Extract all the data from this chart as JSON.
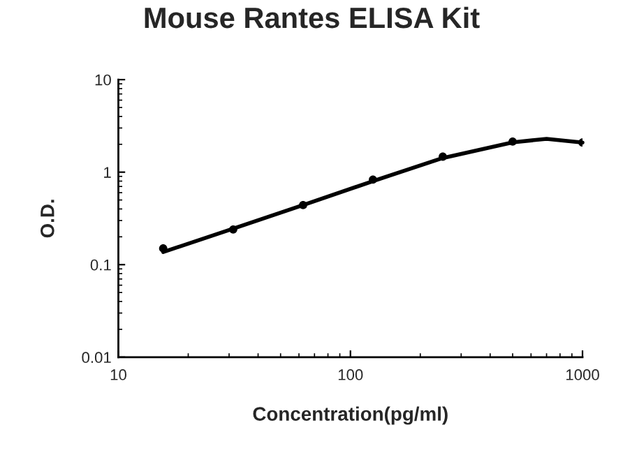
{
  "chart_data": {
    "type": "scatter",
    "title": "Mouse Rantes ELISA Kit",
    "xlabel": "Concentration(pg/ml)",
    "ylabel": "O.D.",
    "log": "xy",
    "xlim": [
      10,
      1000
    ],
    "ylim": [
      0.01,
      10
    ],
    "xticks": [
      10,
      100,
      1000
    ],
    "yticks": [
      0.01,
      0.1,
      1,
      10
    ],
    "grid": false,
    "series": [
      {
        "color": "#000000",
        "marker": "circle",
        "x": [
          15.6,
          31.25,
          62.5,
          125,
          250,
          500,
          1000
        ],
        "values": [
          0.15,
          0.24,
          0.44,
          0.83,
          1.47,
          2.14,
          2.09
        ]
      },
      {
        "type": "line",
        "color": "#000000",
        "marker": "none",
        "line_style": "solid",
        "x": [
          15.6,
          31.25,
          62.5,
          125,
          250,
          500,
          700,
          1000
        ],
        "values": [
          0.137,
          0.245,
          0.44,
          0.8,
          1.42,
          2.1,
          2.29,
          2.09
        ]
      }
    ]
  }
}
